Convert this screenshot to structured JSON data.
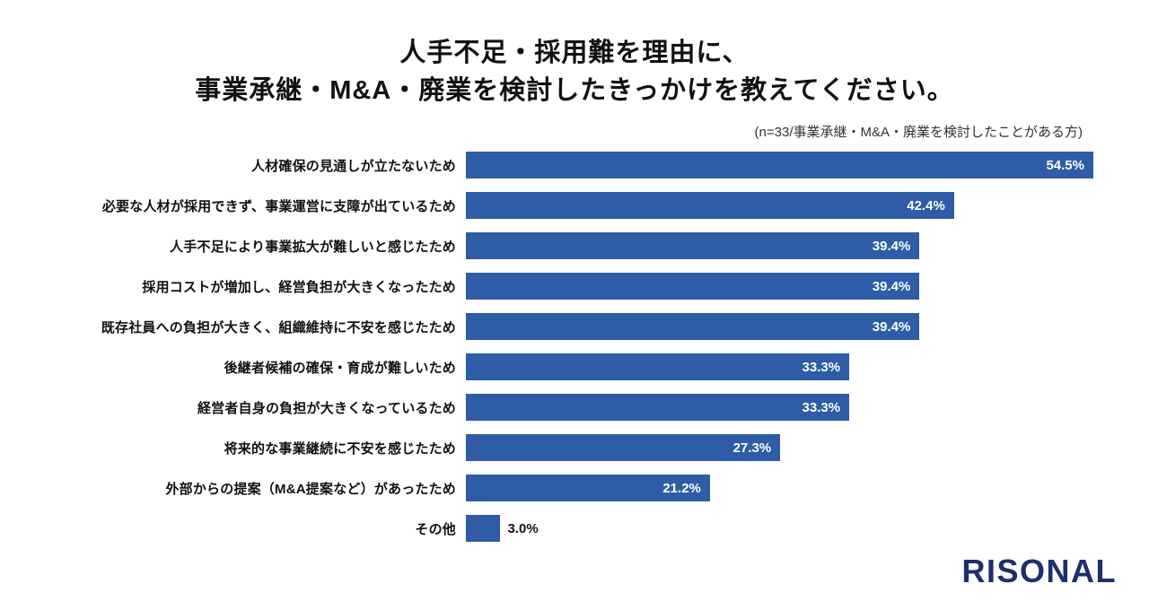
{
  "title": {
    "line1": "人手不足・採用難を理由に、",
    "line2": "事業承継・M&A・廃業を検討したきっかけを教えてください。"
  },
  "subtitle": "(n=33/事業承継・M&A・廃業を検討したことがある方)",
  "logo": "RISONAL",
  "colors": {
    "bar": "#2e5ca6",
    "logo": "#1c2f6e",
    "title": "#111111",
    "value_inside": "#ffffff",
    "value_outside": "#111111"
  },
  "chart_data": {
    "type": "bar",
    "orientation": "horizontal",
    "title": "人手不足・採用難を理由に、事業承継・M&A・廃業を検討したきっかけを教えてください。",
    "subtitle": "(n=33/事業承継・M&A・廃業を検討したことがある方)",
    "categories": [
      "人材確保の見通しが立たないため",
      "必要な人材が採用できず、事業運営に支障が出ているため",
      "人手不足により事業拡大が難しいと感じたため",
      "採用コストが増加し、経営負担が大きくなったため",
      "既存社員への負担が大きく、組織維持に不安を感じたため",
      "後継者候補の確保・育成が難しいため",
      "経営者自身の負担が大きくなっているため",
      "将来的な事業継続に不安を感じたため",
      "外部からの提案（M&A提案など）があったため",
      "その他"
    ],
    "values": [
      54.5,
      42.4,
      39.4,
      39.4,
      39.4,
      33.3,
      33.3,
      27.3,
      21.2,
      3.0
    ],
    "value_labels": [
      "54.5%",
      "42.4%",
      "39.4%",
      "39.4%",
      "39.4%",
      "33.3%",
      "33.3%",
      "27.3%",
      "21.2%",
      "3.0%"
    ],
    "xlim": [
      0,
      54.5
    ],
    "xlabel": "",
    "ylabel": "",
    "grid": false,
    "legend": false,
    "inside_label_threshold": 8
  }
}
